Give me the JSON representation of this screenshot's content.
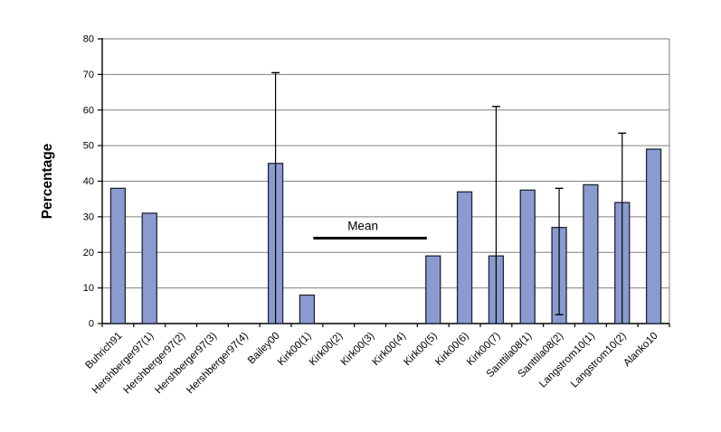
{
  "chart_data": {
    "type": "bar",
    "title": "",
    "xlabel": "",
    "ylabel": "Percentage",
    "ylim": [
      0,
      80
    ],
    "ytick_step": 10,
    "yticks": [
      0,
      10,
      20,
      30,
      40,
      50,
      60,
      70,
      80
    ],
    "grid": true,
    "legend": false,
    "categories": [
      "Buhrich91",
      "Hershberger97(1)",
      "Hershberger97(2)",
      "Hershberger97(3)",
      "Hershberger97(4)",
      "Bailey00",
      "Kirk00(1)",
      "Kirk00(2)",
      "Kirk00(3)",
      "Kirk00(4)",
      "Kirk00(5)",
      "Kirk00(6)",
      "Kirk00(7)",
      "Santtila08(1)",
      "Santtila08(2)",
      "Langstrom10(1)",
      "Langstrom10(2)",
      "Alanko10"
    ],
    "values": [
      38,
      31,
      0,
      0,
      0,
      45,
      8,
      0,
      0,
      0,
      19,
      37,
      19,
      37.5,
      27,
      39,
      34,
      49
    ],
    "error_bars": [
      null,
      null,
      null,
      null,
      null,
      {
        "high": 70.5,
        "low": 0,
        "cap_low": false
      },
      null,
      null,
      null,
      null,
      null,
      null,
      {
        "high": 61,
        "low": 0,
        "cap_low": false
      },
      null,
      {
        "high": 38,
        "low": 2.5,
        "cap_low": true
      },
      null,
      {
        "high": 53.5,
        "low": 0,
        "cap_low": false
      },
      null
    ],
    "annotation": {
      "label": "Mean",
      "value": 24,
      "from_slot": 6.7,
      "to_slot": 10.3
    },
    "colors": {
      "bar_fill": "#8B9BCF",
      "bar_border": "#1F2437",
      "grid": "#808080",
      "axis": "#000000",
      "text": "#000000",
      "annotation_line": "#000000"
    }
  }
}
